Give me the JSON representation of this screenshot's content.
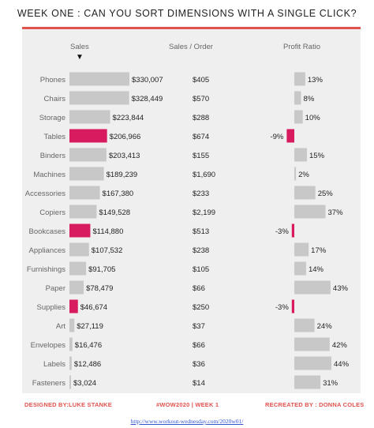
{
  "title": "WEEK ONE : CAN YOU SORT DIMENSIONS WITH A SINGLE CLICK?",
  "headers": {
    "sales": "Sales",
    "sales_per_order": "Sales / Order",
    "profit_ratio": "Profit Ratio"
  },
  "sort_indicator": "▼",
  "footer": {
    "designed_by": "DESIGNED BY:LUKE STANKE",
    "tag": "#WOW2020 | WEEK 1",
    "recreated_by": "RECREATED BY : DONNA COLES",
    "url": "http://www.workout-wednesday.com/2020w01/"
  },
  "colors": {
    "bar": "#c8c8c8",
    "highlight": "#d81b5e",
    "accent": "#e0534f",
    "panel": "#efefef"
  },
  "chart_data": {
    "type": "bar",
    "categories": [
      "Phones",
      "Chairs",
      "Storage",
      "Tables",
      "Binders",
      "Machines",
      "Accessories",
      "Copiers",
      "Bookcases",
      "Appliances",
      "Furnishings",
      "Paper",
      "Supplies",
      "Art",
      "Envelopes",
      "Labels",
      "Fasteners"
    ],
    "sales": [
      330007,
      328449,
      223844,
      206966,
      203413,
      189239,
      167380,
      149528,
      114880,
      107532,
      91705,
      78479,
      46674,
      27119,
      16476,
      12486,
      3024
    ],
    "sales_labels": [
      "$330,007",
      "$328,449",
      "$223,844",
      "$206,966",
      "$203,413",
      "$189,239",
      "$167,380",
      "$149,528",
      "$114,880",
      "$107,532",
      "$91,705",
      "$78,479",
      "$46,674",
      "$27,119",
      "$16,476",
      "$12,486",
      "$3,024"
    ],
    "sales_per_order": [
      "$405",
      "$570",
      "$288",
      "$674",
      "$155",
      "$1,690",
      "$233",
      "$2,199",
      "$513",
      "$238",
      "$105",
      "$66",
      "$250",
      "$37",
      "$66",
      "$36",
      "$14"
    ],
    "profit_ratio": [
      13,
      8,
      10,
      -9,
      15,
      2,
      25,
      37,
      -3,
      17,
      14,
      43,
      -3,
      24,
      42,
      44,
      31
    ],
    "profit_ratio_labels": [
      "13%",
      "8%",
      "10%",
      "-9%",
      "15%",
      "2%",
      "25%",
      "37%",
      "-3%",
      "17%",
      "14%",
      "43%",
      "-3%",
      "24%",
      "42%",
      "44%",
      "31%"
    ],
    "sales_max": 330007,
    "profit_ratio_max": 44
  }
}
